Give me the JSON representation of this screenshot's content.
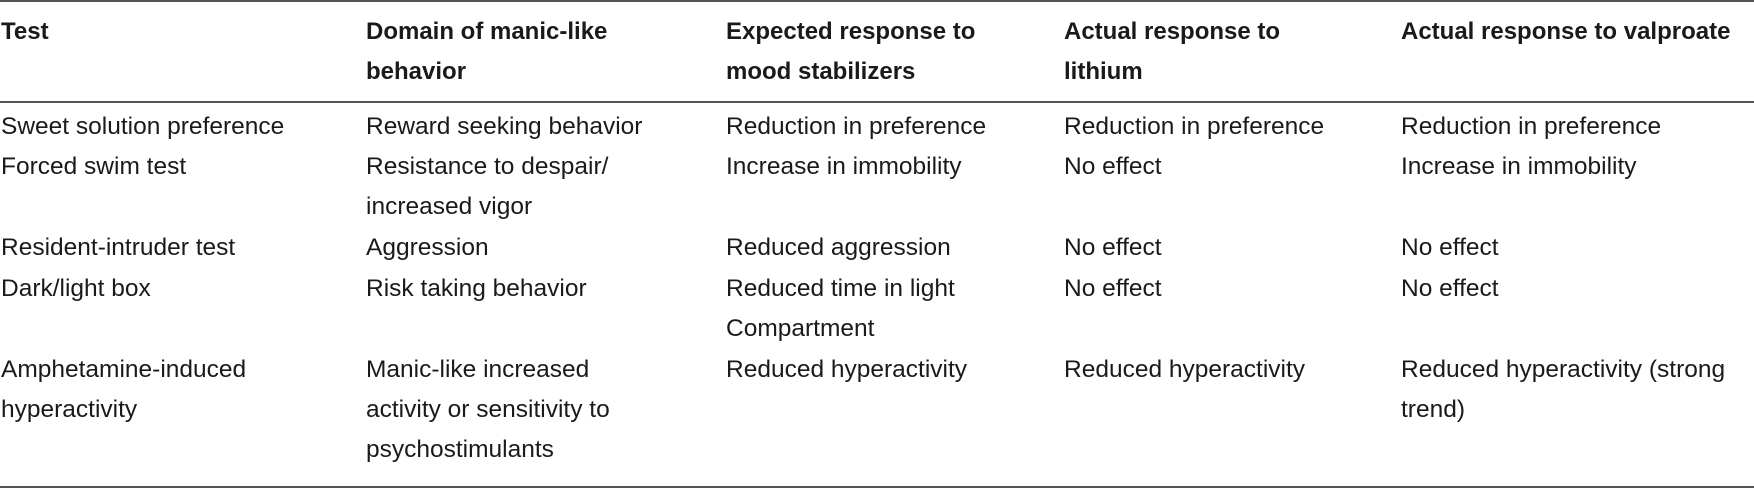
{
  "table": {
    "headers": [
      "Test",
      "Domain of manic-like\nbehavior",
      "Expected response to\nmood stabilizers",
      "Actual response to\nlithium",
      "Actual response to valproate"
    ],
    "rows": [
      [
        "Sweet solution preference",
        "Reward seeking behavior",
        "Reduction in preference",
        "Reduction in preference",
        "Reduction in preference"
      ],
      [
        "Forced swim test",
        "Resistance to despair/\nincreased vigor",
        "Increase in immobility",
        "No effect",
        "Increase in immobility"
      ],
      [
        "Resident-intruder test",
        "Aggression",
        "Reduced aggression",
        "No effect",
        "No effect"
      ],
      [
        "Dark/light box",
        "Risk taking behavior",
        "Reduced time in light\nCompartment",
        "No effect",
        "No effect"
      ],
      [
        "Amphetamine-induced\nhyperactivity",
        "Manic-like increased\nactivity or sensitivity to\npsychostimulants",
        "Reduced hyperactivity",
        "Reduced hyperactivity",
        "Reduced hyperactivity (strong\ntrend)"
      ]
    ]
  }
}
